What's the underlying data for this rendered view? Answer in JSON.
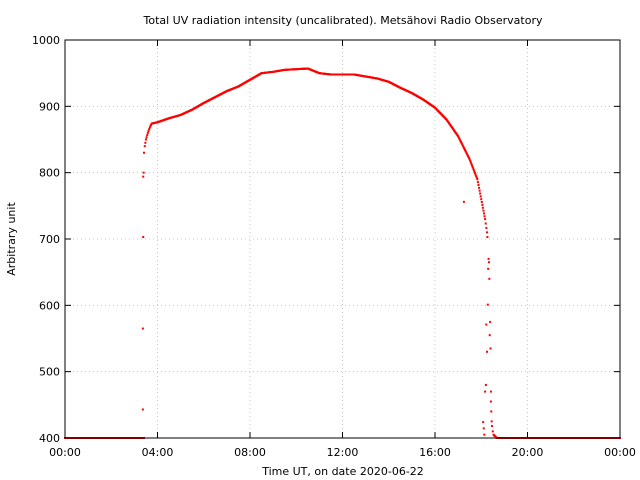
{
  "chart_data": {
    "type": "scatter",
    "title": "Total UV radiation intensity (uncalibrated). Metsähovi Radio Observatory",
    "xlabel": "Time UT, on date 2020-06-22",
    "ylabel": "Arbitrary unit",
    "xlim": [
      "00:00",
      "24:00"
    ],
    "ylim": [
      400,
      1000
    ],
    "x_ticks": [
      "00:00",
      "04:00",
      "08:00",
      "12:00",
      "16:00",
      "20:00",
      "00:00"
    ],
    "y_ticks": [
      "400",
      "500",
      "600",
      "700",
      "800",
      "900",
      "1000"
    ],
    "grid": true,
    "marker_color": "#ff0000",
    "series": [
      {
        "points": [
          [
            "00:00",
            400
          ],
          [
            "00:30",
            400
          ],
          [
            "01:00",
            400
          ],
          [
            "01:30",
            400
          ],
          [
            "02:00",
            400
          ],
          [
            "02:30",
            400
          ],
          [
            "03:00",
            400
          ],
          [
            "03:25",
            400
          ],
          [
            "03:22",
            443
          ],
          [
            "03:22",
            565
          ],
          [
            "03:23",
            703
          ],
          [
            "03:23",
            794
          ],
          [
            "03:24",
            800
          ],
          [
            "03:25",
            830
          ],
          [
            "03:27",
            840
          ],
          [
            "03:30",
            850
          ],
          [
            "03:35",
            860
          ],
          [
            "03:40",
            868
          ],
          [
            "03:45",
            874
          ],
          [
            "04:00",
            876
          ],
          [
            "04:30",
            882
          ],
          [
            "05:00",
            887
          ],
          [
            "05:30",
            895
          ],
          [
            "06:00",
            905
          ],
          [
            "06:30",
            914
          ],
          [
            "07:00",
            923
          ],
          [
            "07:30",
            930
          ],
          [
            "08:00",
            940
          ],
          [
            "08:30",
            950
          ],
          [
            "09:00",
            952
          ],
          [
            "09:30",
            955
          ],
          [
            "10:00",
            956
          ],
          [
            "10:30",
            957
          ],
          [
            "11:00",
            950
          ],
          [
            "11:30",
            948
          ],
          [
            "12:00",
            948
          ],
          [
            "12:30",
            948
          ],
          [
            "13:00",
            945
          ],
          [
            "13:30",
            942
          ],
          [
            "14:00",
            937
          ],
          [
            "14:30",
            928
          ],
          [
            "15:00",
            920
          ],
          [
            "15:30",
            910
          ],
          [
            "16:00",
            898
          ],
          [
            "16:30",
            880
          ],
          [
            "17:00",
            855
          ],
          [
            "17:30",
            820
          ],
          [
            "17:50",
            790
          ],
          [
            "18:00",
            760
          ],
          [
            "18:10",
            730
          ],
          [
            "18:15",
            710
          ],
          [
            "18:16",
            703
          ],
          [
            "17:15",
            756
          ],
          [
            "18:05",
            424
          ],
          [
            "18:08",
            405
          ],
          [
            "18:10",
            470
          ],
          [
            "18:12",
            480
          ],
          [
            "18:13",
            571
          ],
          [
            "18:15",
            530
          ],
          [
            "18:17",
            601
          ],
          [
            "18:18",
            655
          ],
          [
            "18:19",
            670
          ],
          [
            "18:20",
            665
          ],
          [
            "18:21",
            640
          ],
          [
            "18:22",
            555
          ],
          [
            "18:23",
            575
          ],
          [
            "18:24",
            535
          ],
          [
            "18:25",
            470
          ],
          [
            "18:25",
            455
          ],
          [
            "18:26",
            440
          ],
          [
            "18:27",
            425
          ],
          [
            "18:28",
            418
          ],
          [
            "18:30",
            410
          ],
          [
            "18:32",
            405
          ],
          [
            "18:40",
            400
          ],
          [
            "19:00",
            400
          ],
          [
            "19:30",
            400
          ],
          [
            "20:00",
            400
          ],
          [
            "20:30",
            400
          ],
          [
            "21:00",
            400
          ],
          [
            "21:30",
            400
          ],
          [
            "22:00",
            400
          ],
          [
            "22:30",
            400
          ],
          [
            "23:00",
            400
          ],
          [
            "23:30",
            400
          ],
          [
            "24:00",
            400
          ]
        ]
      }
    ]
  }
}
